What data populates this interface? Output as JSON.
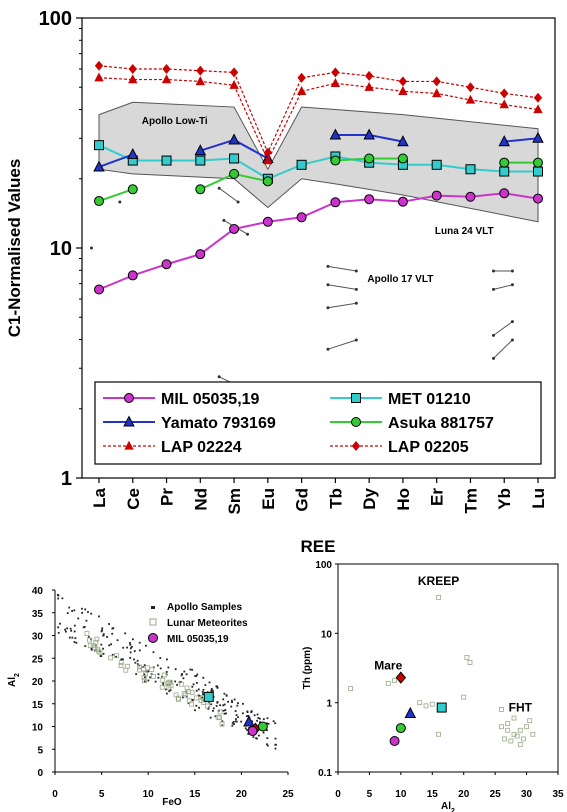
{
  "colors": {
    "mil": "#cc33cc",
    "met": "#33cccc",
    "yamato": "#2233cc",
    "asuka": "#33cc33",
    "lap02224": "#cc0000",
    "lap02205": "#cc0000",
    "apollo_band": "#d8d8d8",
    "lunar_meteorite": "#99aa88"
  },
  "chart_data": [
    {
      "type": "line",
      "x": [
        "La",
        "Ce",
        "Pr",
        "Nd",
        "Sm",
        "Eu",
        "Gd",
        "Tb",
        "Dy",
        "Ho",
        "Er",
        "Tm",
        "Yb",
        "Lu"
      ],
      "xlabel": "REE",
      "ylabel": "C1-Normalised Values",
      "yscale": "log",
      "ylim": [
        1,
        100
      ],
      "yticks": [
        "1",
        "10",
        "100"
      ],
      "legend_position": "bottom-inside",
      "series": [
        {
          "name": "MIL 05035,19",
          "color": "#cc33cc",
          "marker": "circle",
          "line": "solid",
          "values": [
            6.6,
            7.6,
            8.5,
            9.4,
            12.1,
            13.0,
            13.6,
            15.8,
            16.3,
            15.9,
            16.9,
            16.7,
            17.3,
            16.4
          ]
        },
        {
          "name": "MET 01210",
          "color": "#33cccc",
          "marker": "square",
          "line": "solid",
          "values": [
            28,
            24,
            24,
            24,
            24.5,
            20,
            23,
            25,
            23.5,
            23,
            23,
            22,
            21.5,
            21.5
          ]
        },
        {
          "name": "Yamato 793169",
          "color": "#2233cc",
          "marker": "triangle",
          "line": "solid",
          "values": [
            22.5,
            25.5,
            null,
            26.5,
            29.5,
            24.5,
            null,
            31,
            31,
            29,
            null,
            null,
            29,
            30
          ]
        },
        {
          "name": "Asuka 881757",
          "color": "#33cc33",
          "marker": "circle",
          "line": "solid",
          "values": [
            16,
            18,
            null,
            18,
            21,
            19.5,
            null,
            24,
            24.5,
            24.5,
            null,
            null,
            23.5,
            23.5
          ]
        },
        {
          "name": "LAP 02224",
          "color": "#cc0000",
          "marker": "triangle",
          "line": "dashed",
          "values": [
            55,
            54,
            54,
            53,
            51,
            24,
            48,
            52,
            50,
            48,
            47,
            44,
            42,
            40
          ]
        },
        {
          "name": "LAP 02205",
          "color": "#cc0000",
          "marker": "diamond",
          "line": "dashed",
          "values": [
            62,
            60,
            60,
            59,
            58,
            26,
            55,
            58,
            56,
            53,
            53,
            50,
            47,
            45
          ]
        }
      ],
      "band": {
        "label": "Apollo Low-Ti",
        "upper": {
          "x": [
            "La",
            "Ce",
            "Sm",
            "Eu",
            "Gd",
            "Tb",
            "Ho",
            "Lu"
          ],
          "y": [
            38,
            43,
            41,
            22,
            41,
            40,
            38,
            33
          ]
        },
        "lower": {
          "x": [
            "La",
            "Ce",
            "Sm",
            "Eu",
            "Gd",
            "Tb",
            "Ho",
            "Lu"
          ],
          "y": [
            22,
            21,
            20,
            15,
            20,
            19,
            17,
            13
          ]
        }
      },
      "annotations": [
        {
          "text": "Luna 24 VLT",
          "x": "Ho",
          "y": 12
        },
        {
          "text": "Apollo 17 VLT",
          "x": "Tb",
          "y": 7.4
        }
      ]
    },
    {
      "type": "scatter",
      "xlabel": "FeO",
      "ylabel": "Al2O3",
      "xlim": [
        0,
        25
      ],
      "ylim": [
        0,
        40
      ],
      "xticks": [
        "0",
        "5",
        "10",
        "15",
        "20",
        "25"
      ],
      "yticks": [
        "0",
        "5",
        "10",
        "15",
        "20",
        "25",
        "30",
        "35",
        "40"
      ],
      "legend": [
        "Apollo Samples",
        "Lunar Meteorites",
        "MIL 05035,19"
      ],
      "legend_position": "top-right",
      "highlights": [
        {
          "x": 16.5,
          "y": 16.5,
          "color": "#33cccc",
          "marker": "square"
        },
        {
          "x": 20.8,
          "y": 11.0,
          "color": "#2233cc",
          "marker": "triangle"
        },
        {
          "x": 21.5,
          "y": 9.5,
          "color": "#cc0000",
          "marker": "diamond"
        },
        {
          "x": 21.2,
          "y": 9.0,
          "color": "#cc33cc",
          "marker": "circle"
        },
        {
          "x": 22.3,
          "y": 10.0,
          "color": "#33cc33",
          "marker": "circle"
        }
      ]
    },
    {
      "type": "scatter",
      "xlabel": "Al2O3",
      "ylabel": "Th (ppm)",
      "yscale": "log",
      "xlim": [
        0,
        35
      ],
      "ylim": [
        0.1,
        100
      ],
      "xticks": [
        "0",
        "5",
        "10",
        "15",
        "20",
        "25",
        "30",
        "35"
      ],
      "yticks": [
        "0.1",
        "1",
        "10",
        "100"
      ],
      "annotations": [
        {
          "text": "KREEP",
          "x": 16,
          "y": 50
        },
        {
          "text": "Mare",
          "x": 8,
          "y": 3
        },
        {
          "text": "FHT",
          "x": 29,
          "y": 0.75
        }
      ],
      "highlights": [
        {
          "x": 10,
          "y": 2.3,
          "color": "#cc0000",
          "marker": "diamond"
        },
        {
          "x": 11.5,
          "y": 0.7,
          "color": "#2233cc",
          "marker": "triangle"
        },
        {
          "x": 16.5,
          "y": 0.85,
          "color": "#33cccc",
          "marker": "square"
        },
        {
          "x": 10,
          "y": 0.43,
          "color": "#33cc33",
          "marker": "circle"
        },
        {
          "x": 9,
          "y": 0.28,
          "color": "#cc33cc",
          "marker": "circle"
        }
      ]
    }
  ]
}
